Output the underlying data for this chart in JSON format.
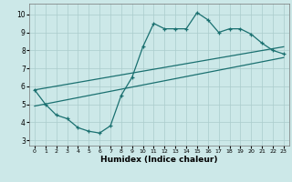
{
  "xlabel": "Humidex (Indice chaleur)",
  "bg_color": "#cce8e8",
  "line_color": "#1a7070",
  "grid_color": "#aacccc",
  "xlim": [
    -0.5,
    23.5
  ],
  "ylim": [
    2.7,
    10.6
  ],
  "xticks": [
    0,
    1,
    2,
    3,
    4,
    5,
    6,
    7,
    8,
    9,
    10,
    11,
    12,
    13,
    14,
    15,
    16,
    17,
    18,
    19,
    20,
    21,
    22,
    23
  ],
  "yticks": [
    3,
    4,
    5,
    6,
    7,
    8,
    9,
    10
  ],
  "main_x": [
    0,
    1,
    2,
    3,
    4,
    5,
    6,
    7,
    8,
    9,
    10,
    11,
    12,
    13,
    14,
    15,
    16,
    17,
    18,
    19,
    20,
    21,
    22,
    23
  ],
  "main_y": [
    5.8,
    5.0,
    4.4,
    4.2,
    3.7,
    3.5,
    3.4,
    3.8,
    5.5,
    6.5,
    8.2,
    9.5,
    9.2,
    9.2,
    9.2,
    10.1,
    9.7,
    9.0,
    9.2,
    9.2,
    8.9,
    8.4,
    8.0,
    7.8
  ],
  "line2_x": [
    0,
    23
  ],
  "line2_y": [
    5.8,
    8.2
  ],
  "line3_x": [
    0,
    23
  ],
  "line3_y": [
    4.9,
    7.6
  ]
}
